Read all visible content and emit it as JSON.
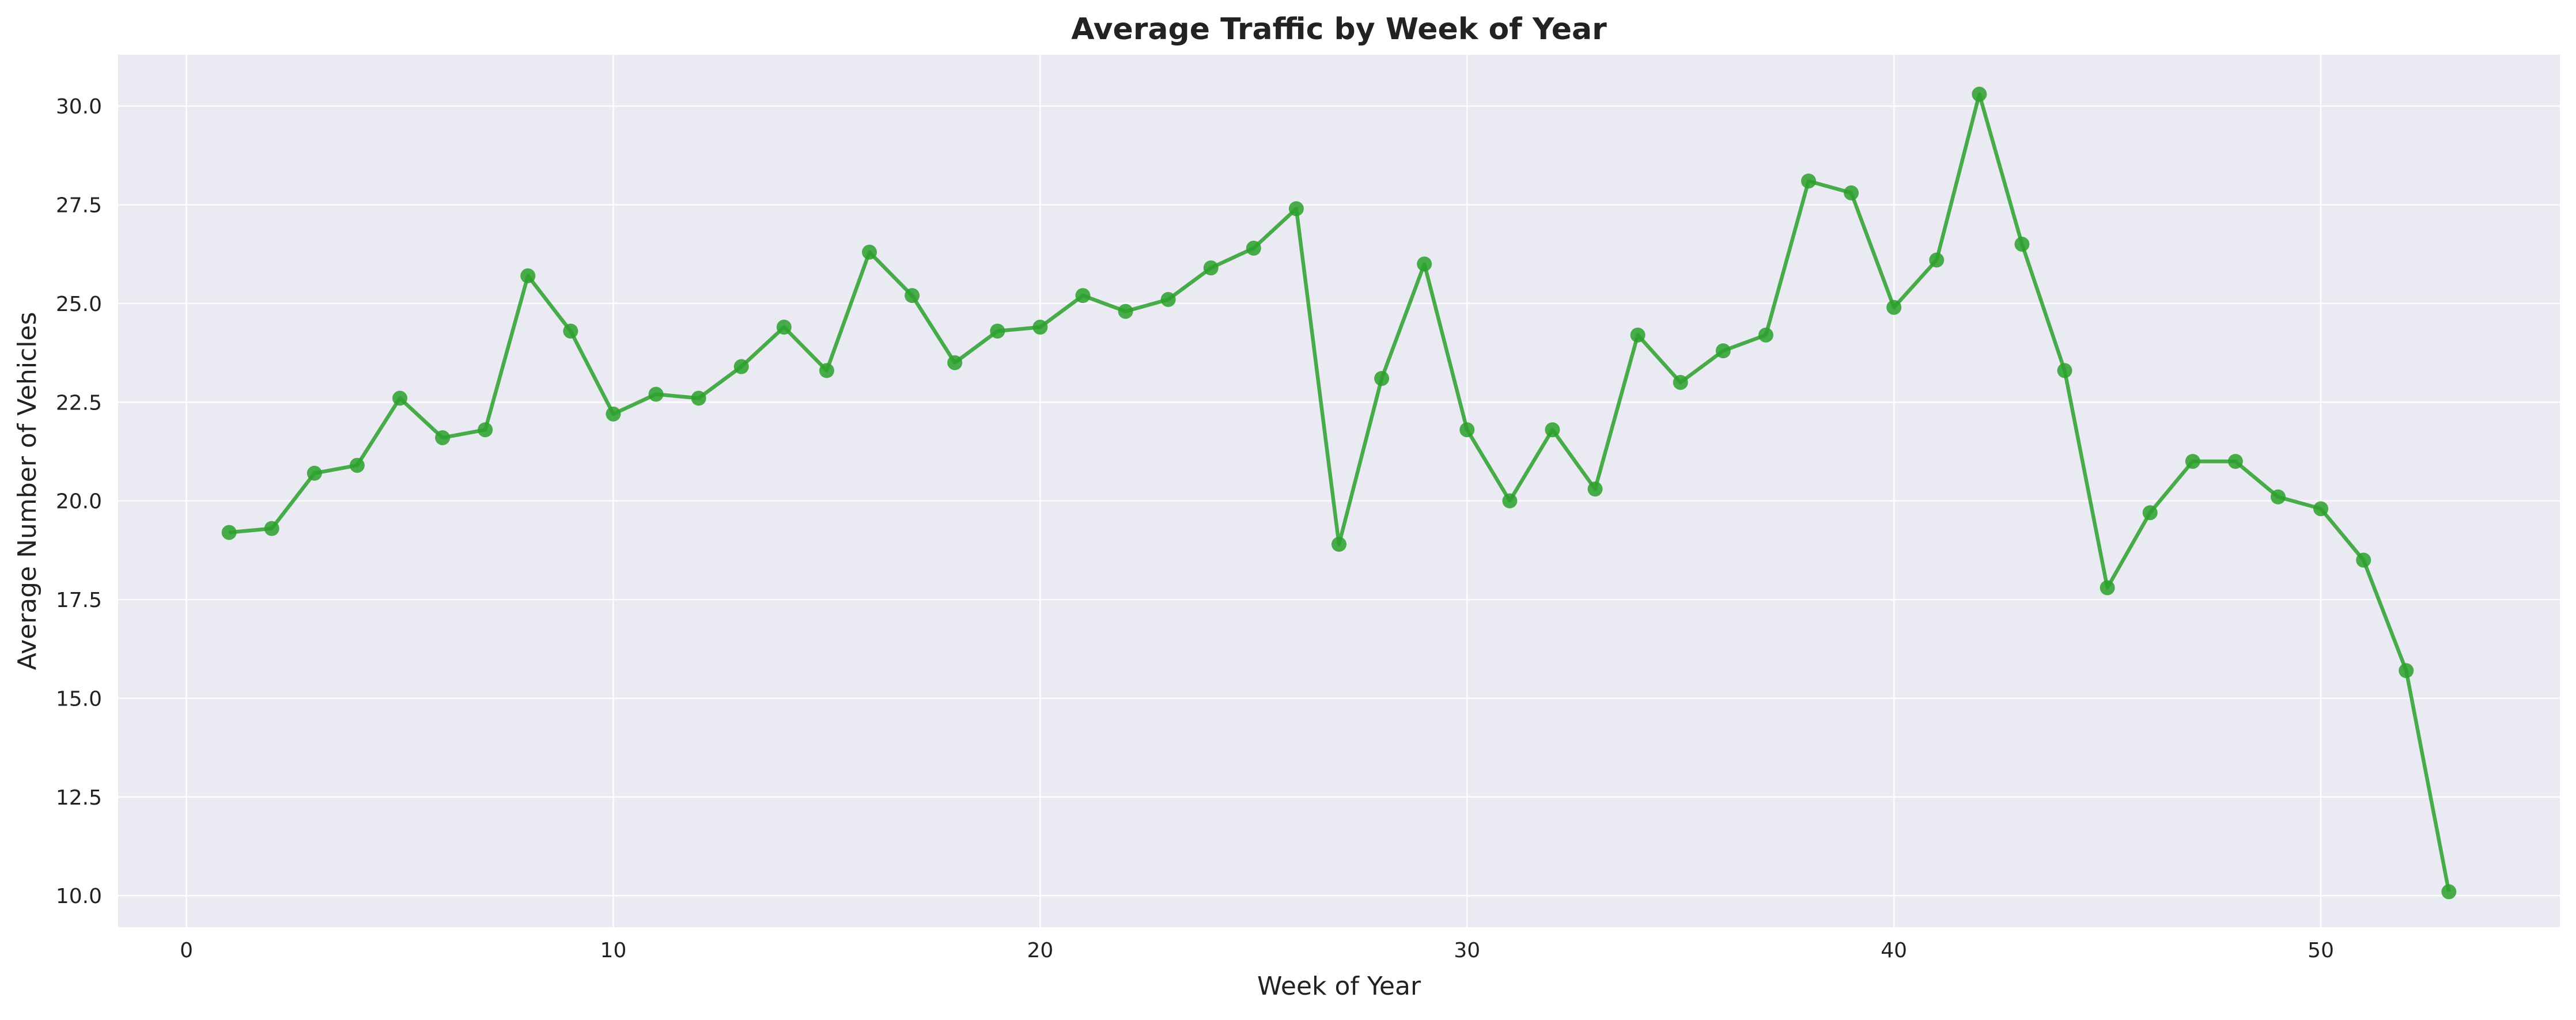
{
  "chart_data": {
    "type": "line",
    "title": "Average Traffic by Week of Year",
    "xlabel": "Week of Year",
    "ylabel": "Average Number of Vehicles",
    "xlim": [
      -1.6,
      55.6
    ],
    "ylim": [
      9.2,
      31.3
    ],
    "x_ticks": [
      0,
      10,
      20,
      30,
      40,
      50
    ],
    "y_ticks": [
      10.0,
      12.5,
      15.0,
      17.5,
      20.0,
      22.5,
      25.0,
      27.5,
      30.0
    ],
    "x_tick_labels": [
      "0",
      "10",
      "20",
      "30",
      "40",
      "50"
    ],
    "y_tick_labels": [
      "10.0",
      "12.5",
      "15.0",
      "17.5",
      "20.0",
      "22.5",
      "25.0",
      "27.5",
      "30.0"
    ],
    "grid": true,
    "legend": "none",
    "colors": {
      "line": "#2ca02c",
      "background": "#eaeaf2",
      "grid": "#ffffff"
    },
    "series": [
      {
        "x": [
          1,
          2,
          3,
          4,
          5,
          6,
          7,
          8,
          9,
          10,
          11,
          12,
          13,
          14,
          15,
          16,
          17,
          18,
          19,
          20,
          21,
          22,
          23,
          24,
          25,
          26,
          27,
          28,
          29,
          30,
          31,
          32,
          33,
          34,
          35,
          36,
          37,
          38,
          39,
          40,
          41,
          42,
          43,
          44,
          45,
          46,
          47,
          48,
          49,
          50,
          51,
          52,
          53
        ],
        "values": [
          19.2,
          19.3,
          20.7,
          20.9,
          22.6,
          21.6,
          21.8,
          25.7,
          24.3,
          22.2,
          22.7,
          22.6,
          23.4,
          24.4,
          23.3,
          26.3,
          25.2,
          23.5,
          24.3,
          24.4,
          25.2,
          24.8,
          25.1,
          25.9,
          26.4,
          27.4,
          18.9,
          23.1,
          26.0,
          21.8,
          20.0,
          21.8,
          20.3,
          24.2,
          23.0,
          23.8,
          24.2,
          28.1,
          27.8,
          24.9,
          26.1,
          30.3,
          26.5,
          23.3,
          17.8,
          19.7,
          21.0,
          21.0,
          20.1,
          19.8,
          18.5,
          15.7,
          10.1
        ]
      }
    ]
  }
}
